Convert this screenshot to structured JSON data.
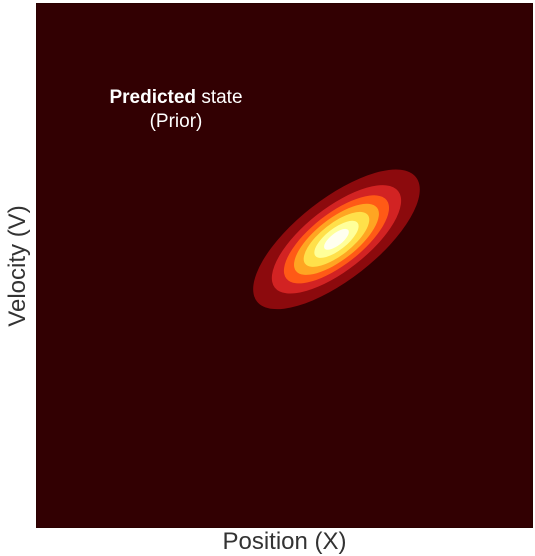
{
  "chart_data": {
    "type": "heatmap",
    "subtype": "filled-contour",
    "annotation": {
      "bold": "Predicted",
      "rest": " state",
      "line2": "(Prior)"
    },
    "xlabel": "Position (X)",
    "ylabel": "Velocity (V)",
    "xlim": [
      0,
      1
    ],
    "ylim": [
      0,
      1
    ],
    "grid": false,
    "legend": "none",
    "distribution": {
      "mean": [
        0.605,
        0.55
      ],
      "rotation_deg": 38,
      "major_sd": 0.095,
      "minor_sd": 0.038
    },
    "contour_levels": [
      0.1,
      0.25,
      0.4,
      0.55,
      0.7,
      0.85
    ],
    "colors": {
      "background": "#320002",
      "levels": [
        "#8c0a0d",
        "#d22323",
        "#ff5a16",
        "#ffa522",
        "#ffe04a",
        "#ffff9a",
        "#fffff0"
      ]
    }
  }
}
